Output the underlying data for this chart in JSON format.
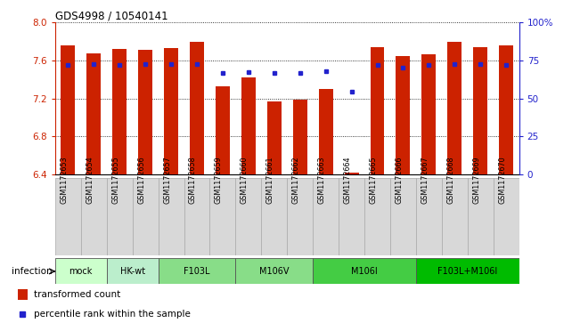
{
  "title": "GDS4998 / 10540141",
  "samples": [
    "GSM1172653",
    "GSM1172654",
    "GSM1172655",
    "GSM1172656",
    "GSM1172657",
    "GSM1172658",
    "GSM1172659",
    "GSM1172660",
    "GSM1172661",
    "GSM1172662",
    "GSM1172663",
    "GSM1172664",
    "GSM1172665",
    "GSM1172666",
    "GSM1172667",
    "GSM1172668",
    "GSM1172669",
    "GSM1172670"
  ],
  "bar_heights": [
    7.76,
    7.68,
    7.72,
    7.71,
    7.73,
    7.8,
    7.33,
    7.42,
    7.17,
    7.19,
    7.3,
    6.42,
    7.74,
    7.65,
    7.67,
    7.8,
    7.74,
    7.76
  ],
  "dot_values": [
    7.55,
    7.56,
    7.55,
    7.56,
    7.56,
    7.56,
    7.47,
    7.48,
    7.47,
    7.47,
    7.49,
    7.27,
    7.55,
    7.53,
    7.55,
    7.56,
    7.56,
    7.55
  ],
  "ylim": [
    6.4,
    8.0
  ],
  "yticks": [
    6.4,
    6.8,
    7.2,
    7.6,
    8.0
  ],
  "right_ytick_labels": [
    "0",
    "25",
    "50",
    "75",
    "100%"
  ],
  "bar_color": "#cc2200",
  "dot_color": "#2222cc",
  "groups": [
    {
      "label": "mock",
      "indices": [
        0,
        1
      ],
      "color": "#ccffcc"
    },
    {
      "label": "HK-wt",
      "indices": [
        2,
        3
      ],
      "color": "#bbeecc"
    },
    {
      "label": "F103L",
      "indices": [
        4,
        5,
        6
      ],
      "color": "#88dd88"
    },
    {
      "label": "M106V",
      "indices": [
        7,
        8,
        9
      ],
      "color": "#88dd88"
    },
    {
      "label": "M106I",
      "indices": [
        10,
        11,
        12,
        13
      ],
      "color": "#44cc44"
    },
    {
      "label": "F103L+M106I",
      "indices": [
        14,
        15,
        16,
        17
      ],
      "color": "#00bb00"
    }
  ],
  "legend_bar_label": "transformed count",
  "legend_dot_label": "percentile rank within the sample",
  "infection_label": "infection"
}
